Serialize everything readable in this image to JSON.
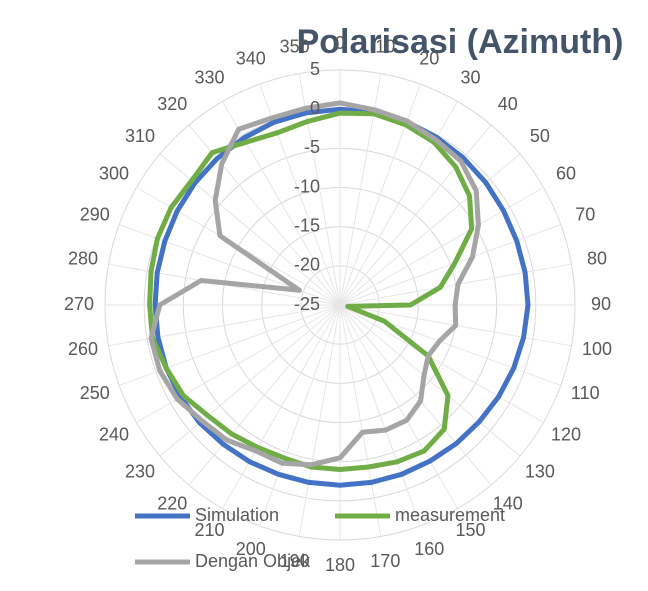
{
  "chart_data": {
    "type": "radar",
    "title": "Polarisasi (Azimuth)",
    "categories": [
      "0",
      "10",
      "20",
      "30",
      "40",
      "50",
      "60",
      "70",
      "80",
      "90",
      "100",
      "110",
      "120",
      "130",
      "140",
      "150",
      "160",
      "170",
      "180",
      "190",
      "200",
      "210",
      "220",
      "230",
      "240",
      "250",
      "260",
      "270",
      "280",
      "290",
      "300",
      "310",
      "320",
      "330",
      "340",
      "350"
    ],
    "ylim": [
      -25,
      5
    ],
    "yticks": [
      -25,
      -20,
      -15,
      -10,
      -5,
      0,
      5
    ],
    "grid": true,
    "series": [
      {
        "name": "Simulation",
        "color": "#4472c4",
        "values": [
          0,
          0,
          -0.1,
          -0.3,
          -0.5,
          -0.7,
          -0.9,
          -1,
          -1,
          -1,
          -1.2,
          -1.4,
          -1.6,
          -1.8,
          -1.9,
          -2,
          -2,
          -2,
          -2,
          -2,
          -2,
          -1.9,
          -1.8,
          -1.6,
          -1.5,
          -1.4,
          -1.4,
          -1.4,
          -1.3,
          -1.2,
          -1,
          -0.8,
          -0.6,
          -0.4,
          -0.2,
          -0.1
        ]
      },
      {
        "name": "measurement",
        "color": "#70ad47",
        "values": [
          -0.5,
          -0.2,
          -0.5,
          -1,
          -2,
          -3.4,
          -5.6,
          -9.4,
          -12,
          -16,
          -24,
          -19,
          -12,
          -7,
          -4.3,
          -3.5,
          -3.7,
          -4,
          -4,
          -4,
          -4.2,
          -4,
          -3.5,
          -3,
          -1.9,
          -1.4,
          -0.7,
          -0.7,
          -0.5,
          -0.2,
          -0.1,
          -0.3,
          0.4,
          -1,
          -1.6,
          -1.2
        ]
      },
      {
        "name": "Dengan Objek",
        "color": "#a5a5a5",
        "values": [
          0.8,
          0.3,
          0,
          -0.6,
          -1,
          -2.3,
          -4.6,
          -7,
          -9.7,
          -10.3,
          -10,
          -11.5,
          -12,
          -11,
          -9,
          -8,
          -8,
          -8.5,
          -5.5,
          -4.3,
          -3.5,
          -3.5,
          -2.5,
          -2,
          -1,
          -0.5,
          -0.5,
          -2,
          -7,
          -19.5,
          -7.3,
          -4.2,
          -1.5,
          0.9,
          0.4,
          0.5
        ]
      }
    ]
  }
}
